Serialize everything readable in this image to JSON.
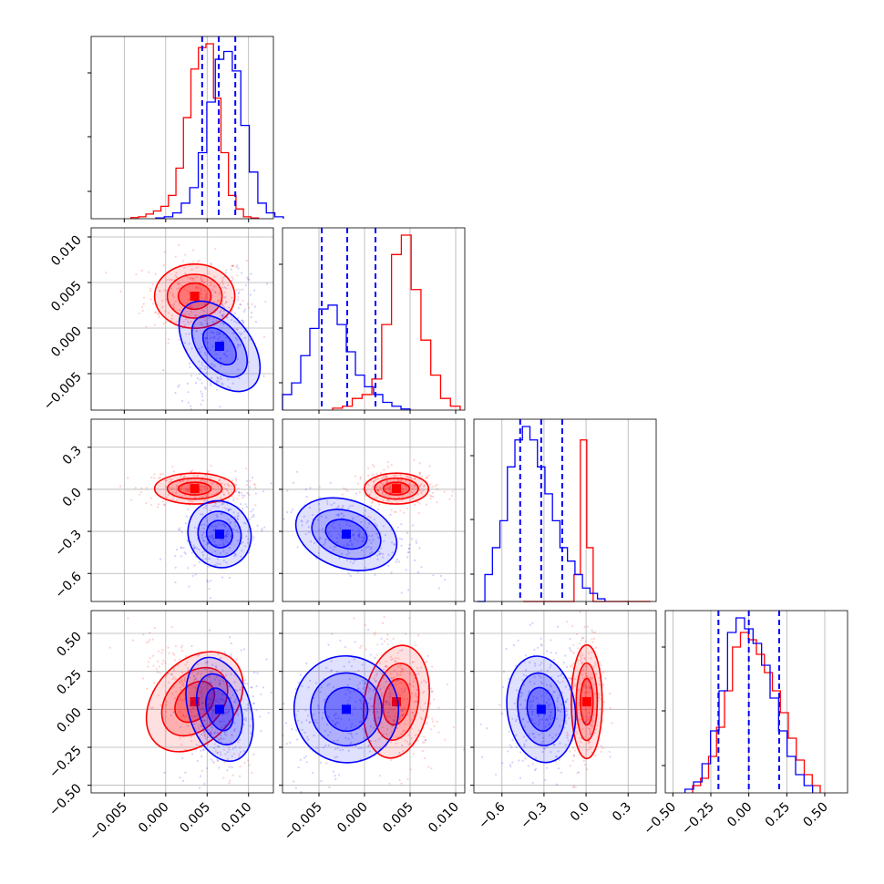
{
  "chart_data": {
    "type": "corner",
    "colors": {
      "series_a": "#ff0000",
      "series_b": "#0000ff",
      "quantile": "#0000ff"
    },
    "series": [
      {
        "color": "red",
        "means": [
          0.0035,
          0.0035,
          0.005,
          0.05
        ],
        "hist": [
          [
            0.3,
            0.5,
            1.2,
            2,
            3.2,
            6,
            13,
            26,
            38.5,
            44,
            45,
            31,
            17,
            6,
            2.5,
            0.5,
            0.2
          ],
          [
            0.5,
            1,
            3,
            4,
            8,
            22,
            40,
            45,
            31,
            18,
            9,
            3,
            1
          ],
          [
            0,
            0,
            0,
            0,
            0,
            0,
            0,
            0,
            1,
            6,
            2,
            0,
            0,
            0,
            0,
            0,
            0,
            0,
            0,
            0
          ],
          [
            2,
            4,
            10,
            18,
            28,
            40,
            44,
            42,
            38,
            33,
            28,
            22,
            15,
            9,
            5,
            2
          ]
        ]
      },
      {
        "color": "blue",
        "means": [
          0.0065,
          -0.002,
          -0.32,
          0.0
        ],
        "hist": [
          [
            0.2,
            0.5,
            1.5,
            4,
            8,
            17,
            30,
            41,
            43,
            38,
            24,
            12,
            4,
            1.5,
            0.5
          ],
          [
            4,
            7,
            14,
            21,
            26,
            27,
            22,
            15,
            9,
            6,
            4,
            2,
            1,
            0.3
          ],
          [
            0,
            1,
            2,
            3,
            5,
            6,
            6.5,
            6,
            5,
            4,
            3,
            2,
            1.5,
            1,
            0.5,
            0.3,
            0.1
          ],
          [
            1,
            3,
            8,
            17,
            28,
            44,
            48,
            45,
            41,
            35,
            26,
            17,
            10,
            5,
            2
          ]
        ]
      }
    ],
    "quantiles": [
      [
        0.0044,
        0.0064,
        0.0084
      ],
      [
        -0.0047,
        -0.0019,
        0.0012
      ],
      [
        -0.47,
        -0.32,
        -0.17
      ],
      [
        -0.2,
        0.0,
        0.2
      ]
    ],
    "axes": [
      {
        "range": [
          -0.009,
          0.013
        ],
        "ticks": [
          -0.005,
          0.0,
          0.005,
          0.01
        ],
        "labels": [
          "−0.005",
          "0.000",
          "0.005",
          "0.010"
        ]
      },
      {
        "range": [
          -0.009,
          0.011
        ],
        "ticks": [
          -0.005,
          0.0,
          0.005,
          0.01
        ],
        "labels": [
          "−0.005",
          "0.000",
          "0.005",
          "0.010"
        ]
      },
      {
        "range": [
          -0.8,
          0.5
        ],
        "ticks": [
          -0.6,
          -0.3,
          0.0,
          0.3
        ],
        "labels": [
          "−0.6",
          "−0.3",
          "0.0",
          "0.3"
        ]
      },
      {
        "range": [
          -0.55,
          0.65
        ],
        "ticks": [
          -0.5,
          -0.25,
          0.0,
          0.25,
          0.5
        ],
        "labels": [
          "−0.50",
          "−0.25",
          "0.00",
          "0.25",
          "0.50"
        ]
      }
    ]
  }
}
